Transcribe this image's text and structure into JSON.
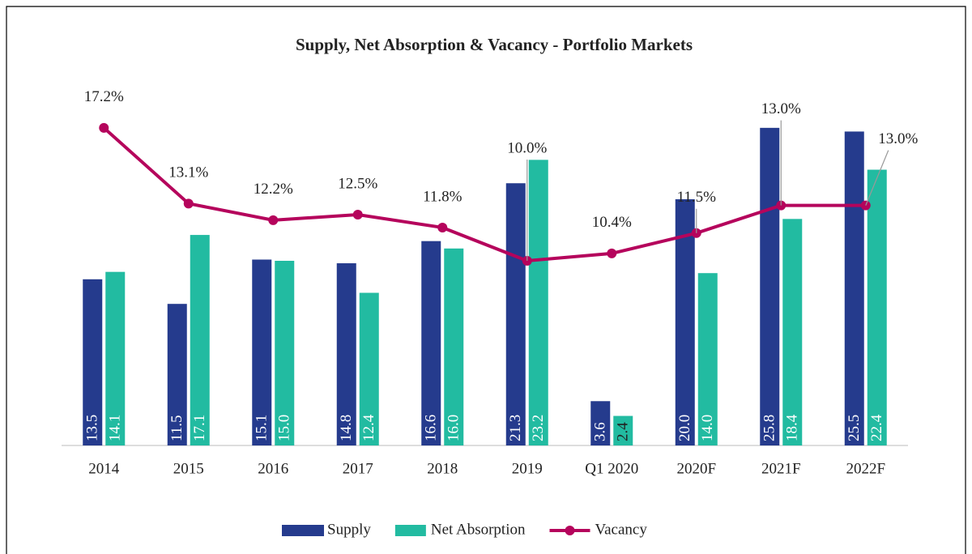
{
  "chart_data": {
    "type": "bar_line",
    "title": "Supply, Net Absorption & Vacancy - Portfolio Markets",
    "categories": [
      "2014",
      "2015",
      "2016",
      "2017",
      "2018",
      "2019",
      "Q1 2020",
      "2020F",
      "2021F",
      "2022F"
    ],
    "series": [
      {
        "name": "Supply",
        "type": "bar",
        "color": "#253b8d",
        "values": [
          13.5,
          11.5,
          15.1,
          14.8,
          16.6,
          21.3,
          3.6,
          20.0,
          25.8,
          25.5
        ],
        "value_labels": [
          "13.5",
          "11.5",
          "15.1",
          "14.8",
          "16.6",
          "21.3",
          "3.6",
          "20.0",
          "25.8",
          "25.5"
        ]
      },
      {
        "name": "Net Absorption",
        "type": "bar",
        "color": "#22bba1",
        "values": [
          14.1,
          17.1,
          15.0,
          12.4,
          16.0,
          23.2,
          2.4,
          14.0,
          18.4,
          22.4
        ],
        "value_labels": [
          "14.1",
          "17.1",
          "15.0",
          "12.4",
          "16.0",
          "23.2",
          "2.4",
          "14.0",
          "18.4",
          "22.4"
        ]
      },
      {
        "name": "Vacancy",
        "type": "line",
        "axis": "y2",
        "color": "#b5045c",
        "values": [
          17.2,
          13.1,
          12.2,
          12.5,
          11.8,
          10.0,
          10.4,
          11.5,
          13.0,
          13.0
        ],
        "value_labels": [
          "17.2%",
          "13.1%",
          "12.2%",
          "12.5%",
          "11.8%",
          "10.0%",
          "10.4%",
          "11.5%",
          "13.0%",
          "13.0%"
        ]
      }
    ],
    "ylim": [
      0,
      30
    ],
    "y2lim": [
      0,
      20
    ],
    "legend": "bottom"
  }
}
